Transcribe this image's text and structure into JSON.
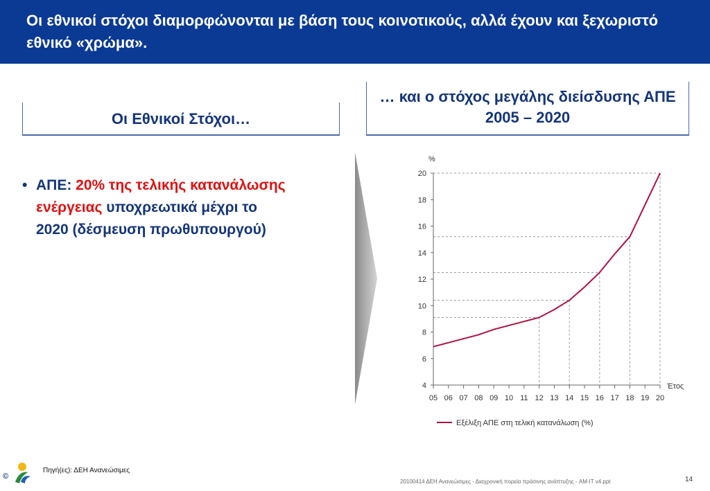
{
  "slide": {
    "title": "Οι εθνικοί στόχοι διαμορφώνονται με βάση τους κοινοτικούς, αλλά έχουν και ξεχωριστό εθνικό «χρώμα».",
    "left_header": "Οι Εθνικοί Στόχοι…",
    "right_header": "… και ο στόχος μεγάλης διείσδυσης ΑΠΕ 2005 – 2020",
    "bullet_marker": "•",
    "bullet_prefix": "ΑΠΕ: ",
    "bullet_highlight": "20% της τελικής κατανάλωσης ενέργειας",
    "bullet_rest": " υποχρεωτικά μέχρι το 2020 (δέσμευση πρωθυπουργού)",
    "source": "Πηγή(ες): ΔΕΗ Ανανεώσιμες",
    "logo_text": "ppc Renewables",
    "copyright": "©",
    "footer": "20100414 ΔΕΗ Ανανεώσιμες - Διαχρονική πορεία πράσινης ανάπτυξης - AM-IT v4.ppt",
    "page_number": "14"
  },
  "chart_data": {
    "type": "line",
    "categories": [
      "05",
      "06",
      "07",
      "08",
      "09",
      "10",
      "11",
      "12",
      "13",
      "14",
      "15",
      "16",
      "17",
      "18",
      "19",
      "20"
    ],
    "series": [
      {
        "name": "Εξέλιξη ΑΠΕ στη τελική κατανάλωση (%)",
        "values": [
          6.9,
          7.2,
          7.5,
          7.8,
          8.2,
          8.5,
          8.8,
          9.1,
          9.7,
          10.4,
          11.4,
          12.5,
          13.9,
          15.2,
          17.6,
          20.0
        ]
      }
    ],
    "ylabel": "%",
    "xlabel": "Έτος",
    "ylim": [
      4,
      20
    ],
    "yticks": [
      4,
      6,
      8,
      10,
      12,
      14,
      16,
      18,
      20
    ],
    "reference_points": [
      {
        "x": "12",
        "y": 9.1
      },
      {
        "x": "14",
        "y": 10.4
      },
      {
        "x": "16",
        "y": 12.5
      },
      {
        "x": "18",
        "y": 15.2
      },
      {
        "x": "20",
        "y": 20.0
      }
    ],
    "line_color": "#b01040",
    "legend_position": "bottom"
  }
}
